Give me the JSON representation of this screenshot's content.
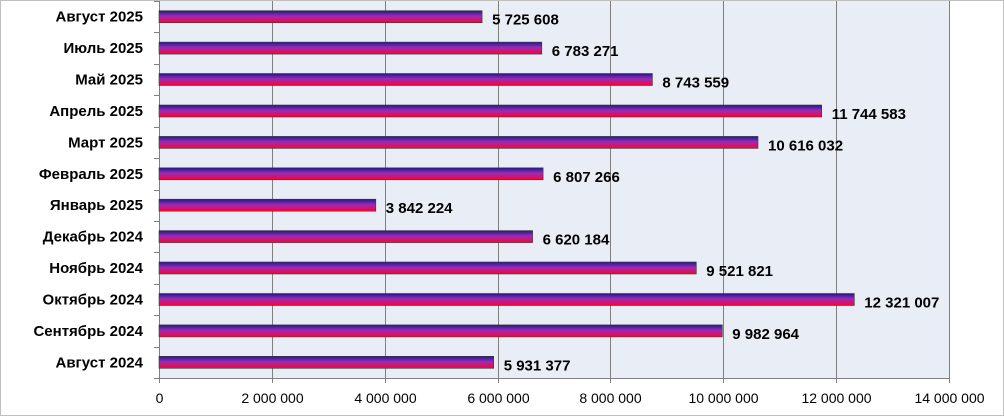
{
  "chart_data": {
    "type": "bar",
    "orientation": "horizontal",
    "categories": [
      "Август 2025",
      "Июль 2025",
      "Май 2025",
      "Апрель 2025",
      "Март 2025",
      "Февраль 2025",
      "Январь 2025",
      "Декабрь 2024",
      "Ноябрь 2024",
      "Октябрь 2024",
      "Сентябрь 2024",
      "Август 2024"
    ],
    "values": [
      5725608,
      6783271,
      8743559,
      11744583,
      10616032,
      6807266,
      3842224,
      6620184,
      9521821,
      12321007,
      9982964,
      5931377
    ],
    "value_labels": [
      "5 725 608",
      "6 783 271",
      "8 743 559",
      "11 744 583",
      "10 616 032",
      "6 807 266",
      "3 842 224",
      "6 620 184",
      "9 521 821",
      "12 321 007",
      "9 982 964",
      "5 931 377"
    ],
    "xlim": [
      0,
      14000000
    ],
    "x_ticks": [
      0,
      2000000,
      4000000,
      6000000,
      8000000,
      10000000,
      12000000,
      14000000
    ],
    "x_tick_labels": [
      "0",
      "2 000 000",
      "4 000 000",
      "6 000 000",
      "8 000 000",
      "10 000 000",
      "12 000 000",
      "14 000 000"
    ],
    "title": "",
    "xlabel": "",
    "ylabel": "",
    "grid": "vertical",
    "legend": "none",
    "colors": {
      "plot_background": "#e9edf6",
      "gridline": "#7f7f7f",
      "bar_top": "#1f1a8c",
      "bar_mid": "#9b2bb5",
      "bar_bottom": "#ff0033"
    }
  }
}
